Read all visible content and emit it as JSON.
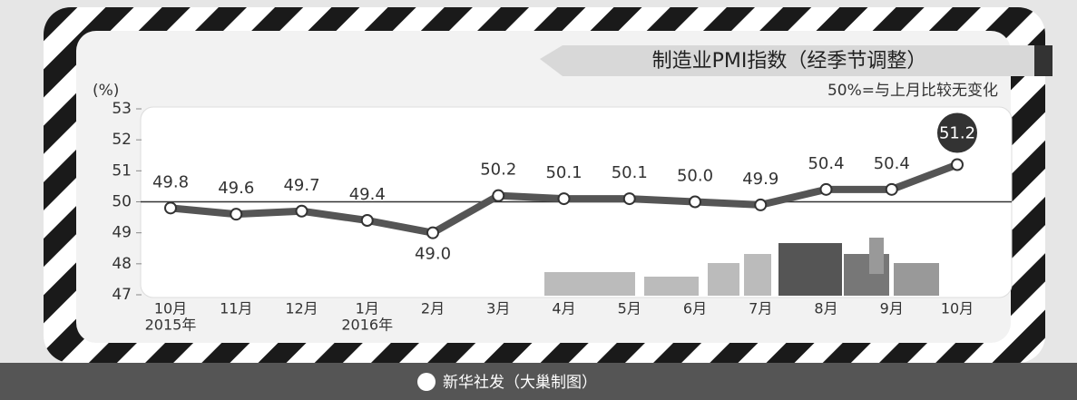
{
  "chart_data": {
    "type": "line",
    "title": "制造业PMI指数（经季节调整）",
    "y_label": "(%)",
    "annotation": "50%=与上月比较无变化",
    "footer": "新华社发（大巢制图）",
    "categories": [
      "10月",
      "11月",
      "12月",
      "1月",
      "2月",
      "3月",
      "4月",
      "5月",
      "6月",
      "7月",
      "8月",
      "9月",
      "10月"
    ],
    "year_labels": [
      "2015年",
      null,
      null,
      "2016年",
      null,
      null,
      null,
      null,
      null,
      null,
      null,
      null,
      null
    ],
    "values": [
      49.8,
      49.6,
      49.7,
      49.4,
      49.0,
      50.2,
      50.1,
      50.1,
      50.0,
      49.9,
      50.4,
      50.4,
      51.2
    ],
    "value_labels": [
      "49.8",
      "49.6",
      "49.7",
      "49.4",
      "49.0",
      "50.2",
      "50.1",
      "50.1",
      "50.0",
      "49.9",
      "50.4",
      "50.4",
      "51.2"
    ],
    "color": "#555555",
    "reference_line": 50,
    "ylim": [
      47,
      53
    ],
    "yticks": [
      47,
      48,
      49,
      50,
      51,
      52,
      53
    ]
  }
}
